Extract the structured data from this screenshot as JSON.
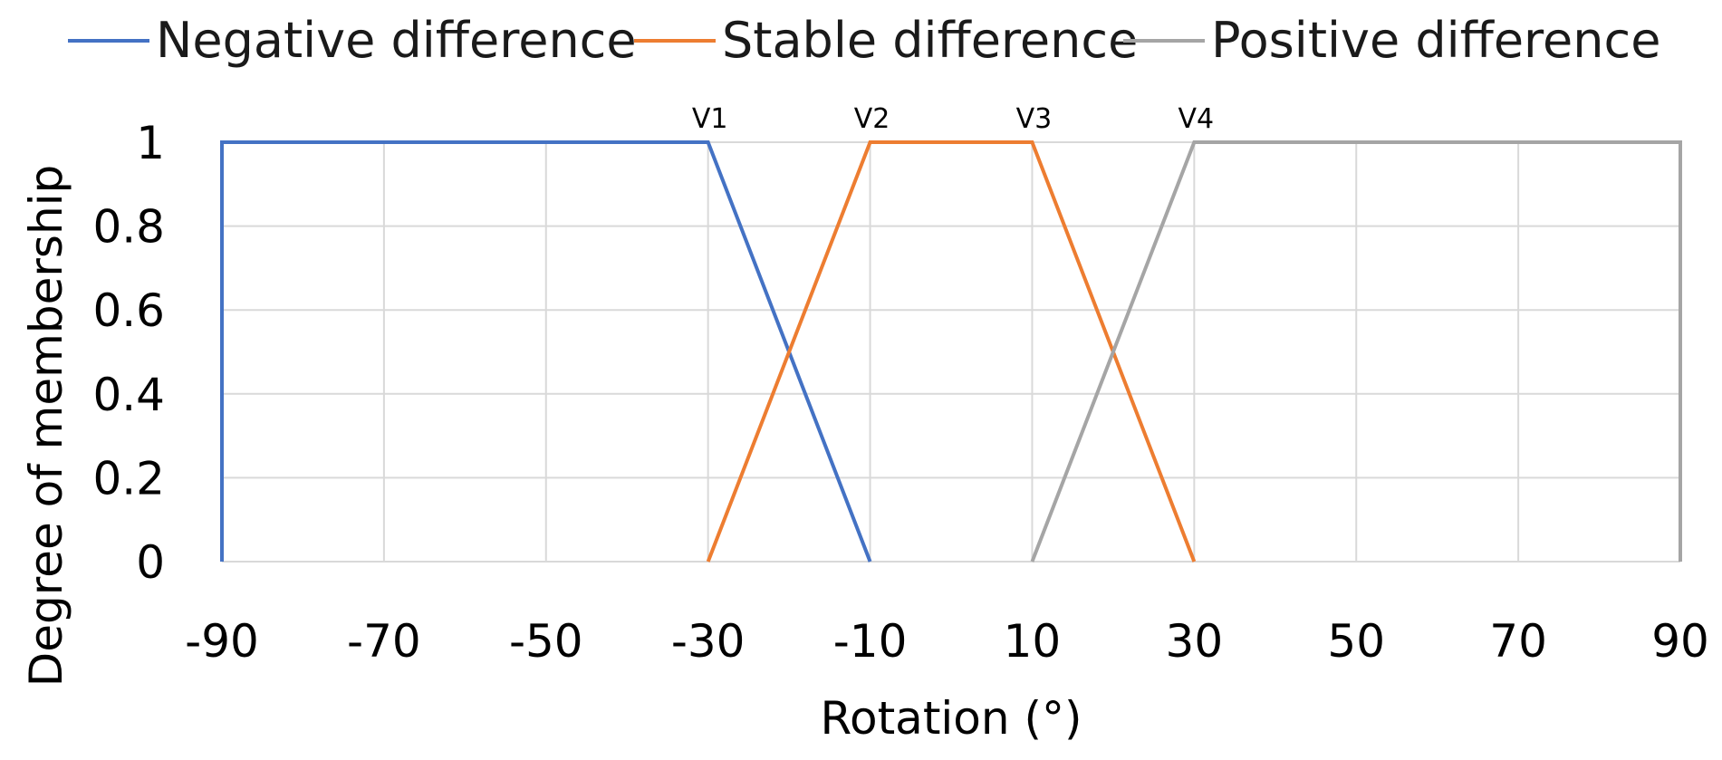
{
  "chart_data": {
    "type": "line",
    "title": "",
    "xlabel": "Rotation (°)",
    "ylabel": "Degree of membership",
    "xlim": [
      -90,
      90
    ],
    "ylim": [
      0,
      1
    ],
    "x_ticks": [
      -90,
      -70,
      -50,
      -30,
      -10,
      10,
      30,
      50,
      70,
      90
    ],
    "y_ticks": [
      0,
      0.2,
      0.4,
      0.6,
      0.8,
      1
    ],
    "grid": true,
    "legend_position": "top",
    "series": [
      {
        "name": "Negative difference",
        "color": "#4472C4",
        "points": [
          [
            -90,
            0
          ],
          [
            -90,
            1
          ],
          [
            -30,
            1
          ],
          [
            -10,
            0
          ]
        ]
      },
      {
        "name": "Stable difference",
        "color": "#ED7D31",
        "points": [
          [
            -30,
            0
          ],
          [
            -10,
            1
          ],
          [
            10,
            1
          ],
          [
            30,
            0
          ]
        ]
      },
      {
        "name": "Positive difference",
        "color": "#A5A5A5",
        "points": [
          [
            10,
            0
          ],
          [
            30,
            1
          ],
          [
            90,
            1
          ],
          [
            90,
            0
          ]
        ]
      }
    ],
    "annotations": [
      {
        "text": "V1",
        "x": -30,
        "y": 1
      },
      {
        "text": "V2",
        "x": -10,
        "y": 1
      },
      {
        "text": "V3",
        "x": 10,
        "y": 1
      },
      {
        "text": "V4",
        "x": 30,
        "y": 1
      }
    ]
  }
}
